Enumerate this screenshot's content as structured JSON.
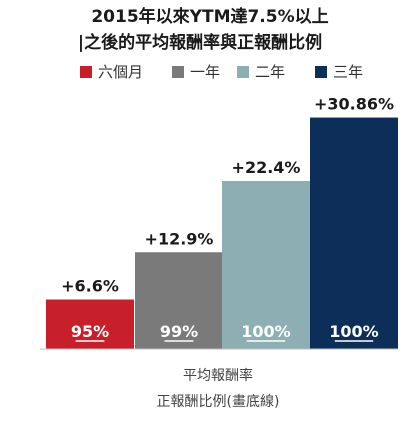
{
  "chart_data": {
    "type": "bar",
    "title_lines": [
      "2015年以來YTM達7.5%以上",
      "|之後的平均報酬率與正報酬比例"
    ],
    "categories": [
      "六個月",
      "一年",
      "二年",
      "三年"
    ],
    "series": [
      {
        "name": "平均報酬率",
        "values": [
          6.6,
          12.9,
          22.4,
          30.86
        ],
        "labels": [
          "+6.6%",
          "+12.9%",
          "+22.4%",
          "+30.86%"
        ]
      },
      {
        "name": "正報酬比例(畫底線)",
        "values": [
          95,
          99,
          100,
          100
        ],
        "labels": [
          "95%",
          "99%",
          "100%",
          "100%"
        ]
      }
    ],
    "legend": {
      "placement": "top",
      "items": [
        "六個月",
        "一年",
        "二年",
        "三年"
      ]
    },
    "bar_colors": [
      "#C8202A",
      "#7A7A7A",
      "#8DAFB3",
      "#0E2E5A"
    ],
    "ylim": [
      0,
      34
    ],
    "xlabel_lines": [
      "平均報酬率",
      "正報酬比例(畫底線)"
    ],
    "grid": false
  }
}
